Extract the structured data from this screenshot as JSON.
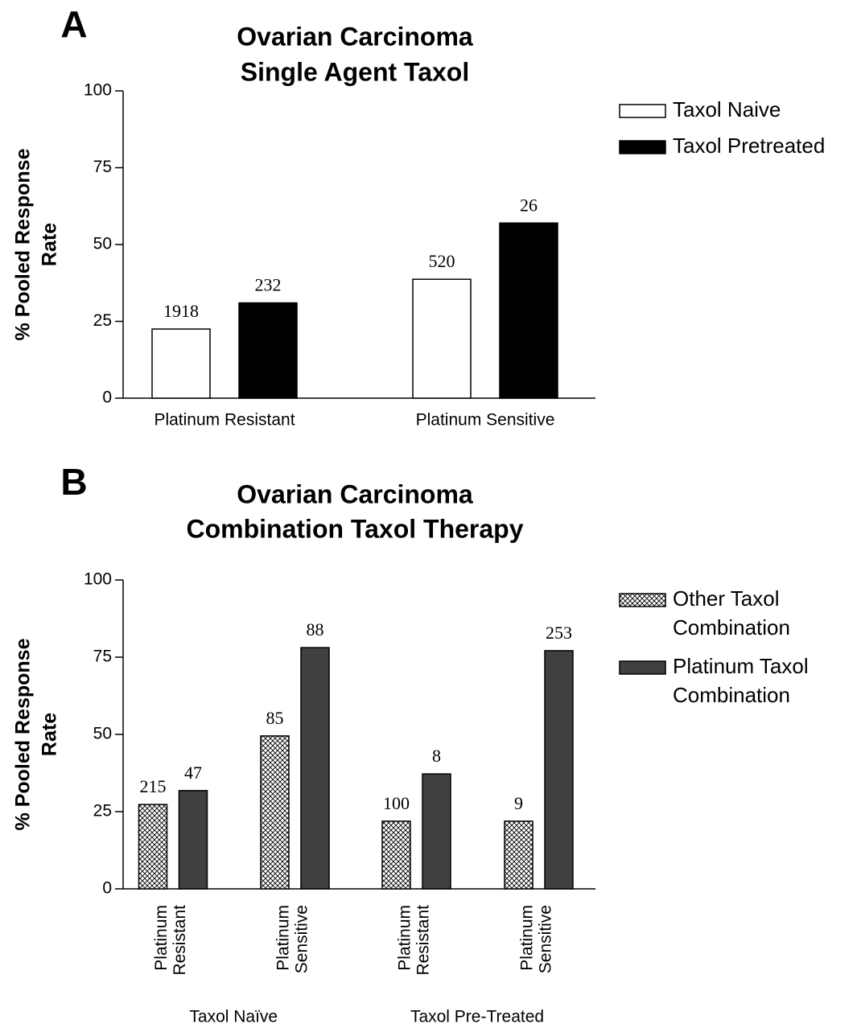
{
  "chart_data": [
    {
      "type": "bar",
      "panel_label": "A",
      "title": [
        "Ovarian Carcinoma",
        "Single Agent Taxol"
      ],
      "y_label": [
        "% Pooled Response",
        "Rate"
      ],
      "categories": [
        "Platinum Resistant",
        "Platinum Sensitive"
      ],
      "series": [
        {
          "name": "Taxol Naive",
          "color": "#ffffff",
          "hatch": false,
          "values": [
            22.5,
            38.7
          ],
          "sample_sizes": [
            1918,
            520
          ]
        },
        {
          "name": "Taxol Pretreated",
          "color": "#000000",
          "hatch": false,
          "values": [
            31,
            57
          ],
          "sample_sizes": [
            232,
            26
          ]
        }
      ],
      "ylim": [
        0,
        100
      ],
      "yticks": [
        0,
        25,
        50,
        75,
        100
      ]
    },
    {
      "type": "bar",
      "panel_label": "B",
      "title": [
        "Ovarian Carcinoma",
        "Combination Taxol Therapy"
      ],
      "y_label": [
        "% Pooled Response",
        "Rate"
      ],
      "categories": [
        [
          "Platinum",
          "Resistant"
        ],
        [
          "Platinum",
          "Sensitive"
        ],
        [
          "Platinum",
          "Resistant"
        ],
        [
          "Platinum",
          "Sensitive"
        ]
      ],
      "groups": [
        "Taxol Naïve",
        "Taxol Pre-Treated"
      ],
      "series": [
        {
          "name": [
            "Other Taxol",
            "Combination"
          ],
          "color": "#ffffff",
          "hatch": true,
          "values": [
            27.3,
            49.5,
            21.9,
            21.9
          ],
          "sample_sizes": [
            215,
            85,
            100,
            9
          ]
        },
        {
          "name": [
            "Platinum Taxol",
            "Combination"
          ],
          "color": "#404040",
          "hatch": false,
          "values": [
            31.8,
            78.1,
            37.2,
            77.1
          ],
          "sample_sizes": [
            47,
            88,
            8,
            253
          ]
        }
      ],
      "ylim": [
        0,
        100
      ],
      "yticks": [
        0,
        25,
        50,
        75,
        100
      ]
    }
  ]
}
